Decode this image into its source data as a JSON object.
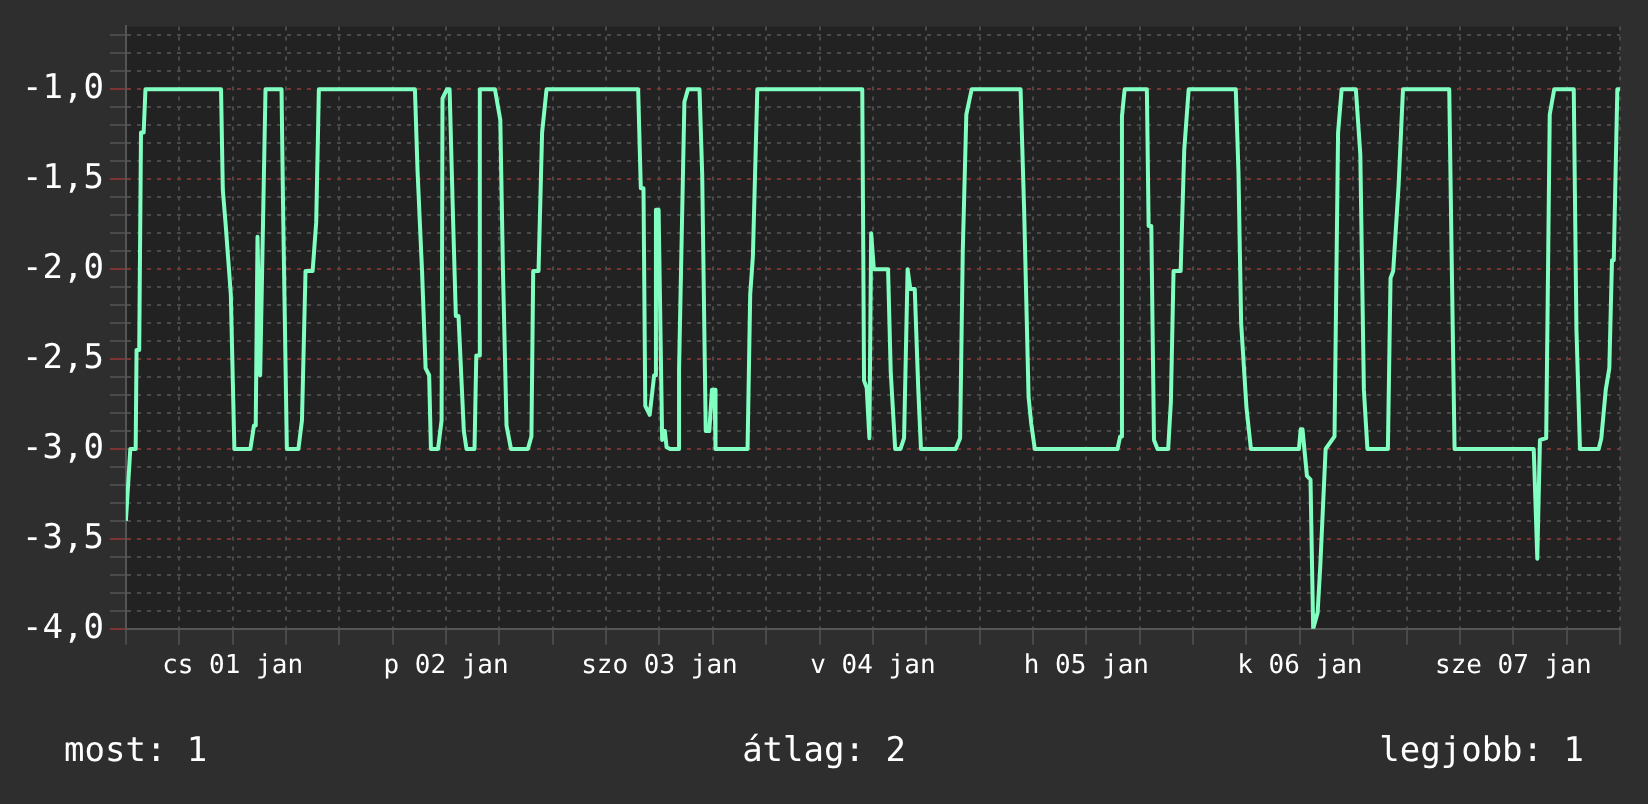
{
  "chart_data": {
    "type": "line",
    "x": [
      "--01-01T00:00",
      "--01-01T00:30",
      "--01-01T01:06",
      "--01-01T01:12",
      "--01-01T01:30",
      "--01-01T01:42",
      "--01-01T02:00",
      "--01-01T02:12",
      "--01-01T10:42",
      "--01-01T10:54",
      "--01-01T11:12",
      "--01-01T11:48",
      "--01-01T12:12",
      "--01-01T14:00",
      "--01-01T14:24",
      "--01-01T14:36",
      "--01-01T14:48",
      "--01-01T15:06",
      "--01-01T15:42",
      "--01-01T17:30",
      "--01-01T17:42",
      "--01-01T18:06",
      "--01-01T19:24",
      "--01-01T19:48",
      "--01-01T20:12",
      "--01-01T21:00",
      "--01-01T21:24",
      "--01-01T21:42",
      "--01-02T08:30",
      "--01-02T08:48",
      "--01-02T09:18",
      "--01-02T09:30",
      "--01-02T09:42",
      "--01-02T10:06",
      "--01-02T10:18",
      "--01-02T11:06",
      "--01-02T11:30",
      "--01-02T11:36",
      "--01-02T12:06",
      "--01-02T12:24",
      "--01-02T12:48",
      "--01-02T13:06",
      "--01-02T13:24",
      "--01-02T14:00",
      "--01-02T14:18",
      "--01-02T15:12",
      "--01-02T15:24",
      "--01-02T15:36",
      "--01-02T15:48",
      "--01-02T17:30",
      "--01-02T18:06",
      "--01-02T18:24",
      "--01-02T18:48",
      "--01-02T19:18",
      "--01-02T21:12",
      "--01-02T21:36",
      "--01-02T21:48",
      "--01-02T22:24",
      "--01-02T22:48",
      "--01-02T23:18",
      "--01-03T09:36",
      "--01-03T09:54",
      "--01-03T10:12",
      "--01-03T10:24",
      "--01-03T10:54",
      "--01-03T11:24",
      "--01-03T11:36",
      "--01-03T11:54",
      "--01-03T12:18",
      "--01-03T12:36",
      "--01-03T12:48",
      "--01-03T13:12",
      "--01-03T14:06",
      "--01-03T14:12",
      "--01-03T14:48",
      "--01-03T15:12",
      "--01-03T16:30",
      "--01-03T16:48",
      "--01-03T17:12",
      "--01-03T17:36",
      "--01-03T17:54",
      "--01-03T18:12",
      "--01-03T18:18",
      "--01-03T21:54",
      "--01-03T22:12",
      "--01-03T22:30",
      "--01-03T23:00",
      "--01-04T10:48",
      "--01-04T11:00",
      "--01-04T11:18",
      "--01-04T11:36",
      "--01-04T11:48",
      "--01-04T12:06",
      "--01-04T13:42",
      "--01-04T14:00",
      "--01-04T14:30",
      "--01-04T15:06",
      "--01-04T15:30",
      "--01-04T15:54",
      "--01-04T16:12",
      "--01-04T16:42",
      "--01-04T17:06",
      "--01-04T17:24",
      "--01-04T21:18",
      "--01-04T21:48",
      "--01-04T22:06",
      "--01-04T22:30",
      "--01-04T23:06",
      "--01-05T04:36",
      "--01-05T05:00",
      "--01-05T05:30",
      "--01-05T05:48",
      "--01-05T06:12",
      "--01-05T15:30",
      "--01-05T15:48",
      "--01-05T16:00",
      "--01-05T16:18",
      "--01-05T18:48",
      "--01-05T19:00",
      "--01-05T19:18",
      "--01-05T19:36",
      "--01-05T20:00",
      "--01-05T21:12",
      "--01-05T21:30",
      "--01-05T21:48",
      "--01-05T22:36",
      "--01-05T23:00",
      "--01-05T23:30",
      "--01-06T04:48",
      "--01-06T05:06",
      "--01-06T05:24",
      "--01-06T06:00",
      "--01-06T06:30",
      "--01-06T11:54",
      "--01-06T12:06",
      "--01-06T12:18",
      "--01-06T12:48",
      "--01-06T13:12",
      "--01-06T13:30",
      "--01-06T14:00",
      "--01-06T14:18",
      "--01-06T14:54",
      "--01-06T15:54",
      "--01-06T16:18",
      "--01-06T16:42",
      "--01-06T18:18",
      "--01-06T18:48",
      "--01-06T19:12",
      "--01-06T19:36",
      "--01-06T21:54",
      "--01-06T22:12",
      "--01-06T22:30",
      "--01-06T23:06",
      "--01-06T23:36",
      "--01-07T04:48",
      "--01-07T05:06",
      "--01-07T05:24",
      "--01-07T14:18",
      "--01-07T14:42",
      "--01-07T15:00",
      "--01-07T15:42",
      "--01-07T16:06",
      "--01-07T16:36",
      "--01-07T18:48",
      "--01-07T19:06",
      "--01-07T19:30",
      "--01-07T21:36",
      "--01-07T21:54",
      "--01-07T22:24",
      "--01-07T22:48",
      "--01-07T23:06",
      "--01-07T23:18",
      "--01-07T23:42",
      "--01-08T00:00"
    ],
    "series": [
      {
        "color": "#80ffc0",
        "values": [
          -3.4,
          -3.0,
          -3.0,
          -2.45,
          -2.45,
          -1.24,
          -1.24,
          -1.0,
          -1.0,
          -1.56,
          -1.74,
          -2.14,
          -3.0,
          -3.0,
          -2.87,
          -2.87,
          -1.82,
          -2.59,
          -1.0,
          -1.0,
          -1.74,
          -3.0,
          -3.0,
          -2.84,
          -2.01,
          -2.01,
          -1.74,
          -1.0,
          -1.0,
          -1.46,
          -2.01,
          -2.01,
          -2.55,
          -2.59,
          -3.0,
          -3.0,
          -2.84,
          -1.05,
          -1.0,
          -1.0,
          -1.74,
          -2.26,
          -2.26,
          -2.9,
          -3.0,
          -3.0,
          -2.48,
          -2.48,
          -1.0,
          -1.0,
          -1.17,
          -2.01,
          -2.87,
          -3.0,
          -3.0,
          -2.93,
          -2.01,
          -2.01,
          -1.24,
          -1.0,
          -1.0,
          -1.55,
          -1.55,
          -2.76,
          -2.81,
          -2.59,
          -1.67,
          -1.67,
          -2.95,
          -2.9,
          -2.99,
          -3.0,
          -3.0,
          -2.56,
          -1.07,
          -1.0,
          -1.0,
          -1.47,
          -2.9,
          -2.9,
          -2.67,
          -2.67,
          -3.0,
          -3.0,
          -2.14,
          -1.93,
          -1.0,
          -1.0,
          -2.62,
          -2.66,
          -2.94,
          -1.8,
          -2.0,
          -2.0,
          -2.57,
          -3.0,
          -3.0,
          -2.94,
          -2.0,
          -2.11,
          -2.11,
          -2.67,
          -3.0,
          -3.0,
          -2.94,
          -1.9,
          -1.14,
          -1.0,
          -1.0,
          -1.67,
          -2.71,
          -2.86,
          -3.0,
          -3.0,
          -2.93,
          -1.15,
          -1.0,
          -1.0,
          -1.76,
          -1.76,
          -2.95,
          -3.0,
          -3.0,
          -2.74,
          -2.01,
          -2.01,
          -1.34,
          -1.0,
          -1.0,
          -1.46,
          -2.3,
          -2.77,
          -3.0,
          -3.0,
          -2.89,
          -2.89,
          -3.15,
          -3.17,
          -4.0,
          -3.91,
          -3.65,
          -3.0,
          -2.93,
          -1.24,
          -1.0,
          -1.0,
          -1.36,
          -2.67,
          -3.0,
          -3.0,
          -2.05,
          -2.01,
          -1.54,
          -1.0,
          -1.0,
          -2.03,
          -3.0,
          -3.0,
          -3.61,
          -2.95,
          -2.94,
          -1.14,
          -1.0,
          -1.0,
          -2.33,
          -3.0,
          -3.0,
          -2.94,
          -2.67,
          -2.55,
          -1.95,
          -1.95,
          -1.0,
          -1.0
        ]
      }
    ],
    "xlim": [
      "--01-01T00:00",
      "--01-08T00:00"
    ],
    "xticks": [
      {
        "value": "--01-01T00:00",
        "label": null
      },
      {
        "value": "--01-01T06:00",
        "label": null
      },
      {
        "value": "--01-01T12:00",
        "label": "cs 01 jan"
      },
      {
        "value": "--01-01T18:00",
        "label": null
      },
      {
        "value": "--01-02T00:00",
        "label": null
      },
      {
        "value": "--01-02T06:00",
        "label": null
      },
      {
        "value": "--01-02T12:00",
        "label": "p 02 jan"
      },
      {
        "value": "--01-02T18:00",
        "label": null
      },
      {
        "value": "--01-03T00:00",
        "label": null
      },
      {
        "value": "--01-03T06:00",
        "label": null
      },
      {
        "value": "--01-03T12:00",
        "label": "szo 03 jan"
      },
      {
        "value": "--01-03T18:00",
        "label": null
      },
      {
        "value": "--01-04T00:00",
        "label": null
      },
      {
        "value": "--01-04T06:00",
        "label": null
      },
      {
        "value": "--01-04T12:00",
        "label": "v 04 jan"
      },
      {
        "value": "--01-04T18:00",
        "label": null
      },
      {
        "value": "--01-05T00:00",
        "label": null
      },
      {
        "value": "--01-05T06:00",
        "label": null
      },
      {
        "value": "--01-05T12:00",
        "label": "h 05 jan"
      },
      {
        "value": "--01-05T18:00",
        "label": null
      },
      {
        "value": "--01-06T00:00",
        "label": null
      },
      {
        "value": "--01-06T06:00",
        "label": null
      },
      {
        "value": "--01-06T12:00",
        "label": "k 06 jan"
      },
      {
        "value": "--01-06T18:00",
        "label": null
      },
      {
        "value": "--01-07T00:00",
        "label": null
      },
      {
        "value": "--01-07T06:00",
        "label": null
      },
      {
        "value": "--01-07T12:00",
        "label": "sze 07 jan"
      },
      {
        "value": "--01-07T18:00",
        "label": null
      },
      {
        "value": "--01-08T00:00",
        "label": null
      }
    ],
    "ylim": [
      -4,
      -0.65
    ],
    "yticks": [
      {
        "value": -4,
        "label": "-4,0"
      },
      {
        "value": -3.9,
        "label": null
      },
      {
        "value": -3.8,
        "label": null
      },
      {
        "value": -3.7,
        "label": null
      },
      {
        "value": -3.6,
        "label": null
      },
      {
        "value": -3.5,
        "label": "-3,5"
      },
      {
        "value": -3.4,
        "label": null
      },
      {
        "value": -3.3,
        "label": null
      },
      {
        "value": -3.2,
        "label": null
      },
      {
        "value": -3.1,
        "label": null
      },
      {
        "value": -3,
        "label": "-3,0"
      },
      {
        "value": -2.9,
        "label": null
      },
      {
        "value": -2.8,
        "label": null
      },
      {
        "value": -2.7,
        "label": null
      },
      {
        "value": -2.6,
        "label": null
      },
      {
        "value": -2.5,
        "label": "-2,5"
      },
      {
        "value": -2.4,
        "label": null
      },
      {
        "value": -2.3,
        "label": null
      },
      {
        "value": -2.2,
        "label": null
      },
      {
        "value": -2.1,
        "label": null
      },
      {
        "value": -2,
        "label": "-2,0"
      },
      {
        "value": -1.9,
        "label": null
      },
      {
        "value": -1.8,
        "label": null
      },
      {
        "value": -1.7,
        "label": null
      },
      {
        "value": -1.6,
        "label": null
      },
      {
        "value": -1.5,
        "label": "-1,5"
      },
      {
        "value": -1.4,
        "label": null
      },
      {
        "value": -1.3,
        "label": null
      },
      {
        "value": -1.2,
        "label": null
      },
      {
        "value": -1.1,
        "label": null
      },
      {
        "value": -1,
        "label": "-1,0"
      },
      {
        "value": -0.9,
        "label": null
      },
      {
        "value": -0.8,
        "label": null
      },
      {
        "value": -0.7,
        "label": null
      }
    ],
    "grid": true,
    "legend": false,
    "marker": "none",
    "line_style": "solid",
    "annotations": [
      "most: 1",
      "átlag: 2",
      "legjobb: 1"
    ]
  }
}
